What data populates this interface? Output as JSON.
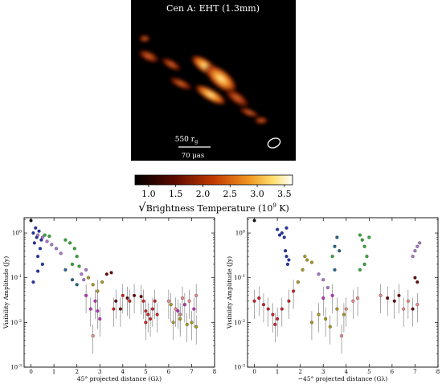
{
  "image_panel": {
    "title": "Cen A: EHT (1.3mm)",
    "scale_top": "550 r",
    "scale_top_sub": "g",
    "scale_bottom": "70 μas"
  },
  "colorbar": {
    "ticks": [
      "1.0",
      "1.5",
      "2.0",
      "2.5",
      "3.0",
      "3.5"
    ],
    "label_root": "√",
    "label_text": "Brightness Temperature (10",
    "label_exp": "9",
    "label_tail": " K)"
  },
  "colors": {
    "blue": "#2233aa",
    "green": "#33aa33",
    "teal": "#226688",
    "purple": "#aa77cc",
    "olive": "#aa9922",
    "darkred": "#6a0a0a",
    "red": "#cc2222",
    "magenta": "#bb33bb",
    "pink": "#ee8888",
    "black": "#111111"
  },
  "chart_data": [
    {
      "type": "scatter",
      "xlabel": "45° projected distance (Gλ)",
      "ylabel": "Visibility Amplitude (Jy)",
      "xlim": [
        -0.3,
        8
      ],
      "ylim": [
        0.001,
        2.2
      ],
      "yscale": "log",
      "xticks": [
        "0",
        "1",
        "2",
        "3",
        "4",
        "5",
        "6",
        "7",
        "8"
      ],
      "yticks": [
        "10^0",
        "10^-1",
        "10^-2",
        "10^-3"
      ],
      "points": [
        {
          "x": 0.0,
          "y": 1.9,
          "c": "black"
        },
        {
          "x": 0.1,
          "y": 1.0,
          "c": "blue"
        },
        {
          "x": 0.15,
          "y": 0.6,
          "c": "blue"
        },
        {
          "x": 0.2,
          "y": 1.3,
          "c": "blue"
        },
        {
          "x": 0.25,
          "y": 0.8,
          "c": "blue"
        },
        {
          "x": 0.3,
          "y": 0.3,
          "c": "blue"
        },
        {
          "x": 0.35,
          "y": 1.1,
          "c": "blue"
        },
        {
          "x": 0.4,
          "y": 0.45,
          "c": "blue"
        },
        {
          "x": 0.5,
          "y": 0.2,
          "c": "blue"
        },
        {
          "x": 0.45,
          "y": 0.7,
          "c": "blue"
        },
        {
          "x": 0.1,
          "y": 0.08,
          "c": "blue"
        },
        {
          "x": 0.3,
          "y": 0.14,
          "c": "blue"
        },
        {
          "x": 0.3,
          "y": 0.9,
          "c": "purple"
        },
        {
          "x": 0.5,
          "y": 0.8,
          "c": "purple"
        },
        {
          "x": 0.7,
          "y": 0.65,
          "c": "purple"
        },
        {
          "x": 0.9,
          "y": 0.55,
          "c": "purple"
        },
        {
          "x": 1.1,
          "y": 0.45,
          "c": "purple"
        },
        {
          "x": 1.3,
          "y": 0.35,
          "c": "purple"
        },
        {
          "x": 0.6,
          "y": 0.9,
          "c": "green"
        },
        {
          "x": 0.8,
          "y": 0.85,
          "c": "green"
        },
        {
          "x": 1.5,
          "y": 0.7,
          "c": "green"
        },
        {
          "x": 1.7,
          "y": 0.6,
          "c": "green"
        },
        {
          "x": 1.9,
          "y": 0.45,
          "c": "green"
        },
        {
          "x": 2.0,
          "y": 0.3,
          "c": "green"
        },
        {
          "x": 2.1,
          "y": 0.18,
          "c": "green"
        },
        {
          "x": 1.8,
          "y": 0.2,
          "c": "green"
        },
        {
          "x": 1.5,
          "y": 0.15,
          "c": "teal"
        },
        {
          "x": 1.8,
          "y": 0.09,
          "c": "teal"
        },
        {
          "x": 2.0,
          "y": 0.07,
          "c": "teal"
        },
        {
          "x": 2.2,
          "y": 0.12,
          "c": "purple"
        },
        {
          "x": 2.4,
          "y": 0.15,
          "c": "purple"
        },
        {
          "x": 2.3,
          "y": 0.09,
          "c": "purple"
        },
        {
          "x": 2.5,
          "y": 0.1,
          "c": "olive"
        },
        {
          "x": 2.7,
          "y": 0.07,
          "c": "olive"
        },
        {
          "x": 2.9,
          "y": 0.05,
          "c": "olive"
        },
        {
          "x": 3.1,
          "y": 0.08,
          "c": "olive"
        },
        {
          "x": 3.3,
          "y": 0.12,
          "c": "darkred"
        },
        {
          "x": 3.5,
          "y": 0.13,
          "c": "darkred"
        },
        {
          "x": 2.4,
          "y": 0.04,
          "c": "magenta"
        },
        {
          "x": 2.6,
          "y": 0.02,
          "c": "magenta"
        },
        {
          "x": 2.8,
          "y": 0.03,
          "c": "magenta"
        },
        {
          "x": 2.9,
          "y": 0.018,
          "c": "magenta"
        },
        {
          "x": 3.0,
          "y": 0.012,
          "c": "magenta"
        },
        {
          "x": 2.7,
          "y": 0.005,
          "c": "pink"
        },
        {
          "x": 3.7,
          "y": 0.03,
          "c": "darkred"
        },
        {
          "x": 3.9,
          "y": 0.02,
          "c": "darkred"
        },
        {
          "x": 4.2,
          "y": 0.035,
          "c": "darkred"
        },
        {
          "x": 4.5,
          "y": 0.04,
          "c": "darkred"
        },
        {
          "x": 4.8,
          "y": 0.038,
          "c": "darkred"
        },
        {
          "x": 3.6,
          "y": 0.02,
          "c": "red"
        },
        {
          "x": 4.0,
          "y": 0.04,
          "c": "red"
        },
        {
          "x": 4.9,
          "y": 0.03,
          "c": "red"
        },
        {
          "x": 5.0,
          "y": 0.018,
          "c": "red"
        },
        {
          "x": 5.1,
          "y": 0.015,
          "c": "red"
        },
        {
          "x": 5.2,
          "y": 0.012,
          "c": "red"
        },
        {
          "x": 5.3,
          "y": 0.02,
          "c": "red"
        },
        {
          "x": 5.4,
          "y": 0.03,
          "c": "red"
        },
        {
          "x": 5.0,
          "y": 0.01,
          "c": "red"
        },
        {
          "x": 4.3,
          "y": 0.03,
          "c": "red"
        },
        {
          "x": 5.5,
          "y": 0.015,
          "c": "red"
        },
        {
          "x": 6.0,
          "y": 0.03,
          "c": "pink"
        },
        {
          "x": 6.3,
          "y": 0.02,
          "c": "pink"
        },
        {
          "x": 6.6,
          "y": 0.035,
          "c": "pink"
        },
        {
          "x": 6.9,
          "y": 0.03,
          "c": "pink"
        },
        {
          "x": 7.2,
          "y": 0.04,
          "c": "pink"
        },
        {
          "x": 6.5,
          "y": 0.015,
          "c": "pink"
        },
        {
          "x": 6.2,
          "y": 0.01,
          "c": "olive"
        },
        {
          "x": 6.5,
          "y": 0.012,
          "c": "olive"
        },
        {
          "x": 6.8,
          "y": 0.009,
          "c": "olive"
        },
        {
          "x": 7.0,
          "y": 0.01,
          "c": "olive"
        },
        {
          "x": 7.2,
          "y": 0.008,
          "c": "olive"
        },
        {
          "x": 6.1,
          "y": 0.025,
          "c": "olive"
        },
        {
          "x": 6.4,
          "y": 0.018,
          "c": "magenta"
        },
        {
          "x": 6.7,
          "y": 0.025,
          "c": "magenta"
        },
        {
          "x": 7.1,
          "y": 0.02,
          "c": "magenta"
        }
      ]
    },
    {
      "type": "scatter",
      "xlabel": "−45° projected distance (Gλ)",
      "ylabel": "Visibility Amplitude (Jy)",
      "xlim": [
        -0.3,
        8
      ],
      "ylim": [
        0.001,
        2.2
      ],
      "yscale": "log",
      "xticks": [
        "0",
        "1",
        "2",
        "3",
        "4",
        "5",
        "6",
        "7",
        "8"
      ],
      "yticks": [
        "10^0",
        "10^-1",
        "10^-2",
        "10^-3"
      ],
      "points": [
        {
          "x": 0.0,
          "y": 1.9,
          "c": "black"
        },
        {
          "x": 1.0,
          "y": 1.2,
          "c": "blue"
        },
        {
          "x": 1.1,
          "y": 0.9,
          "c": "blue"
        },
        {
          "x": 1.2,
          "y": 1.0,
          "c": "blue"
        },
        {
          "x": 1.3,
          "y": 0.8,
          "c": "blue"
        },
        {
          "x": 1.4,
          "y": 1.3,
          "c": "blue"
        },
        {
          "x": 1.35,
          "y": 0.4,
          "c": "blue"
        },
        {
          "x": 1.4,
          "y": 0.3,
          "c": "blue"
        },
        {
          "x": 1.45,
          "y": 0.2,
          "c": "blue"
        },
        {
          "x": 1.5,
          "y": 0.25,
          "c": "blue"
        },
        {
          "x": 0.0,
          "y": 0.03,
          "c": "red"
        },
        {
          "x": 0.2,
          "y": 0.035,
          "c": "red"
        },
        {
          "x": 0.4,
          "y": 0.025,
          "c": "red"
        },
        {
          "x": 0.6,
          "y": 0.02,
          "c": "red"
        },
        {
          "x": 0.8,
          "y": 0.015,
          "c": "red"
        },
        {
          "x": 0.9,
          "y": 0.009,
          "c": "red"
        },
        {
          "x": 1.0,
          "y": 0.012,
          "c": "red"
        },
        {
          "x": 1.2,
          "y": 0.02,
          "c": "red"
        },
        {
          "x": 1.5,
          "y": 0.03,
          "c": "red"
        },
        {
          "x": 1.7,
          "y": 0.05,
          "c": "red"
        },
        {
          "x": 1.9,
          "y": 0.08,
          "c": "olive"
        },
        {
          "x": 2.1,
          "y": 0.15,
          "c": "olive"
        },
        {
          "x": 2.3,
          "y": 0.25,
          "c": "olive"
        },
        {
          "x": 2.5,
          "y": 0.22,
          "c": "olive"
        },
        {
          "x": 2.2,
          "y": 0.3,
          "c": "olive"
        },
        {
          "x": 2.8,
          "y": 0.12,
          "c": "purple"
        },
        {
          "x": 3.0,
          "y": 0.09,
          "c": "purple"
        },
        {
          "x": 3.2,
          "y": 0.06,
          "c": "purple"
        },
        {
          "x": 3.4,
          "y": 0.3,
          "c": "green"
        },
        {
          "x": 3.5,
          "y": 0.5,
          "c": "teal"
        },
        {
          "x": 3.6,
          "y": 0.8,
          "c": "teal"
        },
        {
          "x": 3.7,
          "y": 0.4,
          "c": "teal"
        },
        {
          "x": 3.5,
          "y": 0.15,
          "c": "teal"
        },
        {
          "x": 4.6,
          "y": 0.9,
          "c": "green"
        },
        {
          "x": 4.7,
          "y": 0.7,
          "c": "green"
        },
        {
          "x": 4.8,
          "y": 0.5,
          "c": "green"
        },
        {
          "x": 4.9,
          "y": 0.3,
          "c": "green"
        },
        {
          "x": 4.8,
          "y": 0.2,
          "c": "green"
        },
        {
          "x": 5.0,
          "y": 0.8,
          "c": "green"
        },
        {
          "x": 4.6,
          "y": 0.15,
          "c": "green"
        },
        {
          "x": 2.5,
          "y": 0.01,
          "c": "olive"
        },
        {
          "x": 2.8,
          "y": 0.015,
          "c": "olive"
        },
        {
          "x": 3.1,
          "y": 0.012,
          "c": "olive"
        },
        {
          "x": 3.3,
          "y": 0.008,
          "c": "olive"
        },
        {
          "x": 3.6,
          "y": 0.02,
          "c": "olive"
        },
        {
          "x": 3.9,
          "y": 0.015,
          "c": "olive"
        },
        {
          "x": 3.8,
          "y": 0.005,
          "c": "pink"
        },
        {
          "x": 4.0,
          "y": 0.02,
          "c": "pink"
        },
        {
          "x": 4.3,
          "y": 0.03,
          "c": "pink"
        },
        {
          "x": 4.5,
          "y": 0.035,
          "c": "pink"
        },
        {
          "x": 3.0,
          "y": 0.035,
          "c": "magenta"
        },
        {
          "x": 3.4,
          "y": 0.04,
          "c": "magenta"
        },
        {
          "x": 5.5,
          "y": 0.04,
          "c": "pink"
        },
        {
          "x": 5.8,
          "y": 0.035,
          "c": "darkred"
        },
        {
          "x": 6.1,
          "y": 0.03,
          "c": "darkred"
        },
        {
          "x": 6.3,
          "y": 0.04,
          "c": "darkred"
        },
        {
          "x": 6.5,
          "y": 0.02,
          "c": "pink"
        },
        {
          "x": 6.7,
          "y": 0.03,
          "c": "pink"
        },
        {
          "x": 6.9,
          "y": 0.02,
          "c": "darkred"
        },
        {
          "x": 7.1,
          "y": 0.025,
          "c": "pink"
        },
        {
          "x": 6.9,
          "y": 0.3,
          "c": "purple"
        },
        {
          "x": 7.0,
          "y": 0.4,
          "c": "purple"
        },
        {
          "x": 7.1,
          "y": 0.5,
          "c": "purple"
        },
        {
          "x": 7.2,
          "y": 0.6,
          "c": "purple"
        },
        {
          "x": 7.0,
          "y": 0.1,
          "c": "darkred"
        },
        {
          "x": 7.1,
          "y": 0.08,
          "c": "darkred"
        }
      ]
    }
  ]
}
